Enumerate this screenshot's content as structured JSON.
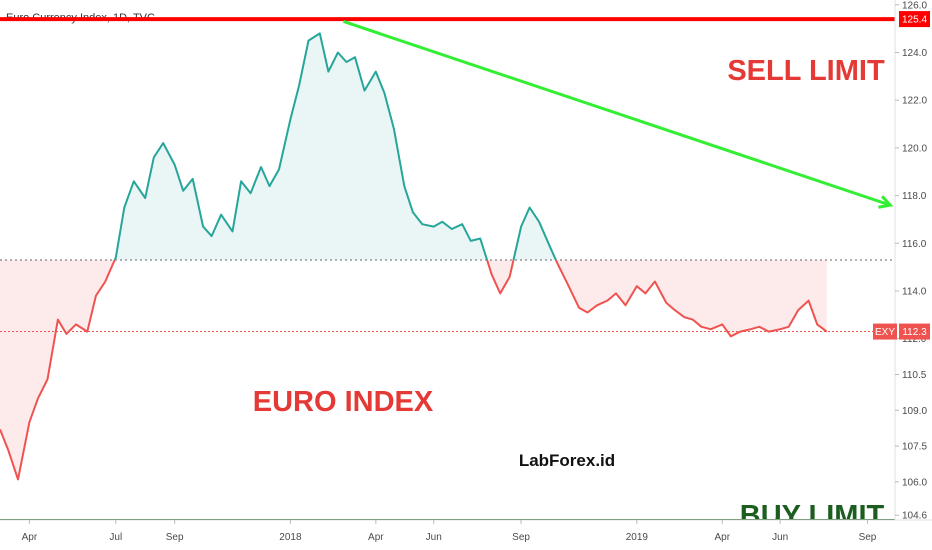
{
  "header": {
    "title": "Euro Currency Index, 1D, TVC"
  },
  "colors": {
    "up_line": "#26a69a",
    "up_fill": "#e9f6f5",
    "down_line": "#ef5350",
    "down_fill": "#fdeaea",
    "sell_line": "#ff0000",
    "trend_line": "#33ee33",
    "sell_text": "#e53935",
    "buy_text": "#1b5e20",
    "euro_text": "#e53935"
  },
  "annotations": {
    "sell_limit": "SELL LIMIT",
    "buy_limit": "BUY LIMIT",
    "euro_index": "EURO INDEX",
    "watermark": "LabForex.id"
  },
  "chart_data": {
    "type": "area",
    "title": "Euro Currency Index, 1D, TVC",
    "xlabel": "",
    "ylabel": "",
    "ylim": [
      104.4,
      126.2
    ],
    "yticks": [
      104.6,
      106.0,
      107.5,
      109.0,
      110.5,
      112.0,
      114.0,
      116.0,
      118.0,
      120.0,
      122.0,
      124.0,
      126.0
    ],
    "xticks": [
      "Apr",
      "Jul",
      "Sep",
      "2018",
      "Apr",
      "Jun",
      "Sep",
      "2019",
      "Apr",
      "Jun",
      "Sep"
    ],
    "grid": false,
    "baseline": 115.3,
    "series": [
      {
        "name": "EXY",
        "x": [
          "2017-03-01",
          "2017-03-10",
          "2017-03-20",
          "2017-04-01",
          "2017-04-10",
          "2017-04-20",
          "2017-05-01",
          "2017-05-10",
          "2017-05-20",
          "2017-06-01",
          "2017-06-10",
          "2017-06-20",
          "2017-07-01",
          "2017-07-10",
          "2017-07-20",
          "2017-08-01",
          "2017-08-10",
          "2017-08-20",
          "2017-09-01",
          "2017-09-10",
          "2017-09-20",
          "2017-10-01",
          "2017-10-10",
          "2017-10-20",
          "2017-11-01",
          "2017-11-10",
          "2017-11-20",
          "2017-12-01",
          "2017-12-10",
          "2017-12-20",
          "2018-01-01",
          "2018-01-10",
          "2018-01-20",
          "2018-02-01",
          "2018-02-10",
          "2018-02-20",
          "2018-03-01",
          "2018-03-10",
          "2018-03-20",
          "2018-04-01",
          "2018-04-10",
          "2018-04-20",
          "2018-05-01",
          "2018-05-10",
          "2018-05-20",
          "2018-06-01",
          "2018-06-10",
          "2018-06-20",
          "2018-07-01",
          "2018-07-10",
          "2018-07-20",
          "2018-08-01",
          "2018-08-10",
          "2018-08-20",
          "2018-09-01",
          "2018-09-10",
          "2018-09-20",
          "2018-10-01",
          "2018-10-10",
          "2018-10-20",
          "2018-11-01",
          "2018-11-10",
          "2018-11-20",
          "2018-12-01",
          "2018-12-10",
          "2018-12-20",
          "2019-01-01",
          "2019-01-10",
          "2019-01-20",
          "2019-02-01",
          "2019-02-10",
          "2019-02-20",
          "2019-03-01",
          "2019-03-10",
          "2019-03-20",
          "2019-04-01",
          "2019-04-10",
          "2019-04-20",
          "2019-05-01",
          "2019-05-10",
          "2019-05-20",
          "2019-06-01",
          "2019-06-10",
          "2019-06-20",
          "2019-07-01",
          "2019-07-10",
          "2019-07-20"
        ],
        "values": [
          108.2,
          107.3,
          106.1,
          108.5,
          109.5,
          110.3,
          112.8,
          112.2,
          112.6,
          112.3,
          113.8,
          114.4,
          115.4,
          117.5,
          118.6,
          117.9,
          119.6,
          120.2,
          119.3,
          118.2,
          118.7,
          116.7,
          116.3,
          117.2,
          116.5,
          118.6,
          118.1,
          119.2,
          118.4,
          119.1,
          121.2,
          122.6,
          124.5,
          124.8,
          123.2,
          124.0,
          123.6,
          123.8,
          122.4,
          123.2,
          122.3,
          120.8,
          118.4,
          117.3,
          116.8,
          116.7,
          116.9,
          116.6,
          116.8,
          116.1,
          116.2,
          114.7,
          113.9,
          114.6,
          116.7,
          117.5,
          116.9,
          115.9,
          115.1,
          114.3,
          113.3,
          113.1,
          113.4,
          113.6,
          113.9,
          113.4,
          114.2,
          113.9,
          114.4,
          113.5,
          113.2,
          112.9,
          112.8,
          112.5,
          112.4,
          112.6,
          112.1,
          112.3,
          112.4,
          112.5,
          112.3,
          112.4,
          112.5,
          113.2,
          113.6,
          112.6,
          112.3
        ]
      }
    ],
    "current_label": "EXY",
    "current_value": "112.3",
    "current_level": 112.3,
    "sell_limit_label": "125.4",
    "sell_limit_level": 125.4,
    "trend_line": {
      "start": [
        "2018-02-26",
        125.3
      ],
      "end": [
        "2019-09-25",
        117.6
      ]
    },
    "buy_limit_level": 104.4
  }
}
